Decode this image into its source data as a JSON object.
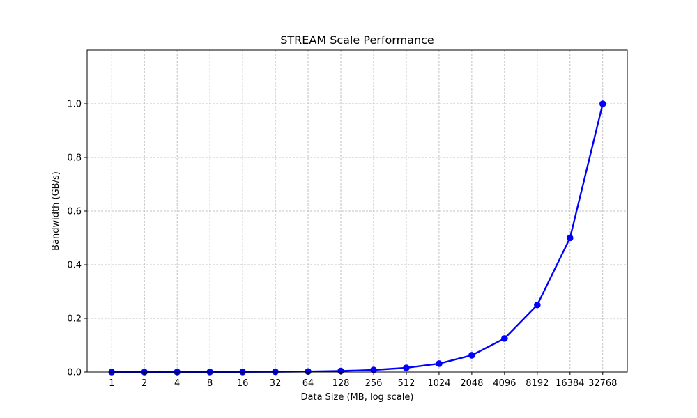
{
  "chart_data": {
    "type": "line",
    "title": "STREAM Scale Performance",
    "xlabel": "Data Size (MB, log scale)",
    "ylabel": "Bandwidth (GB/s)",
    "x_scale": "log2",
    "categories": [
      "1",
      "2",
      "4",
      "8",
      "16",
      "32",
      "64",
      "128",
      "256",
      "512",
      "1024",
      "2048",
      "4096",
      "8192",
      "16384",
      "32768"
    ],
    "x": [
      1,
      2,
      4,
      8,
      16,
      32,
      64,
      128,
      256,
      512,
      1024,
      2048,
      4096,
      8192,
      16384,
      32768
    ],
    "series": [
      {
        "values": [
          3.05e-05,
          6.1e-05,
          0.000122,
          0.000244,
          0.000488,
          0.000977,
          0.00195,
          0.0039,
          0.0078,
          0.0156,
          0.03125,
          0.0625,
          0.125,
          0.25,
          0.5,
          1.0
        ],
        "color": "#0000ff",
        "marker": "circle"
      }
    ],
    "yticks": [
      "0.0",
      "0.2",
      "0.4",
      "0.6",
      "0.8",
      "1.0"
    ],
    "ytick_values": [
      0.0,
      0.2,
      0.4,
      0.6,
      0.8,
      1.0
    ],
    "ylim": [
      0,
      1.2
    ],
    "grid": true,
    "legend": "none"
  }
}
